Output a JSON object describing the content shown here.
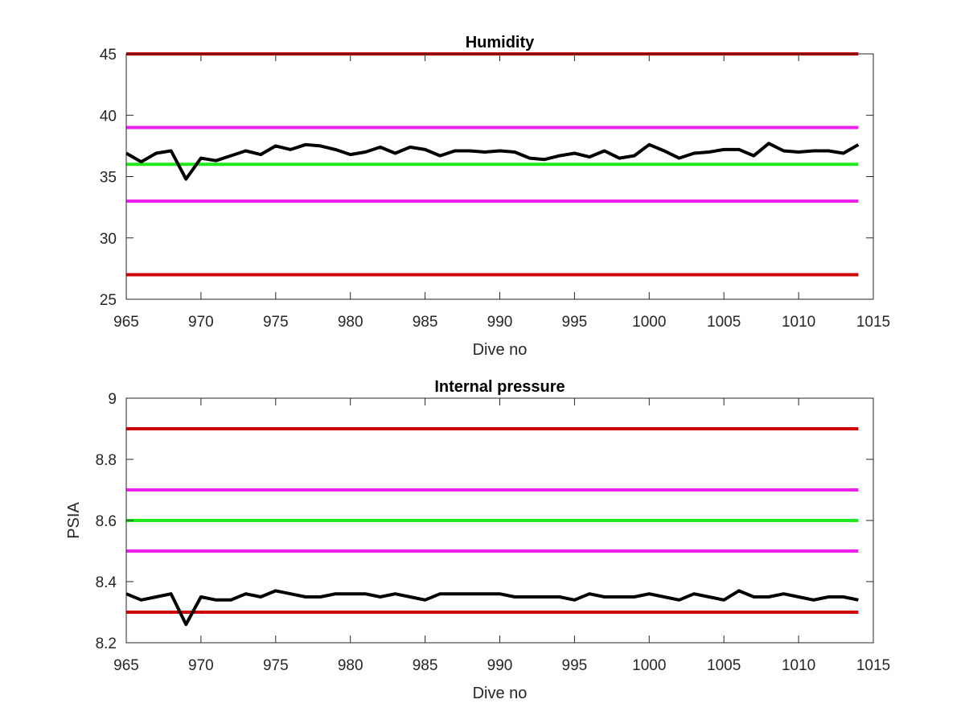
{
  "chart_data": [
    {
      "type": "line",
      "title": "Humidity",
      "xlabel": "Dive no",
      "ylabel": "",
      "xlim": [
        965,
        1015
      ],
      "ylim": [
        25,
        45
      ],
      "xticks": [
        "965",
        "970",
        "975",
        "980",
        "985",
        "990",
        "995",
        "1000",
        "1005",
        "1010",
        "1015"
      ],
      "yticks": [
        "25",
        "30",
        "35",
        "40",
        "45"
      ],
      "grid": false,
      "limit_lines": [
        {
          "y": 45,
          "color": "#d10000"
        },
        {
          "y": 39,
          "color": "#ee1fee"
        },
        {
          "y": 36,
          "color": "#1fe81f"
        },
        {
          "y": 33,
          "color": "#ee1fee"
        },
        {
          "y": 27,
          "color": "#d10000"
        }
      ],
      "series": [
        {
          "color": "#000000",
          "x": [
            965,
            966,
            967,
            968,
            969,
            970,
            971,
            972,
            973,
            974,
            975,
            976,
            977,
            978,
            979,
            980,
            981,
            982,
            983,
            984,
            985,
            986,
            987,
            988,
            989,
            990,
            991,
            992,
            993,
            994,
            995,
            996,
            997,
            998,
            999,
            1000,
            1001,
            1002,
            1003,
            1004,
            1005,
            1006,
            1007,
            1008,
            1009,
            1010,
            1011,
            1012,
            1013,
            1014
          ],
          "y": [
            36.9,
            36.2,
            36.9,
            37.1,
            34.8,
            36.5,
            36.3,
            36.7,
            37.1,
            36.8,
            37.5,
            37.2,
            37.6,
            37.5,
            37.2,
            36.8,
            37.0,
            37.4,
            36.9,
            37.4,
            37.2,
            36.7,
            37.1,
            37.1,
            37.0,
            37.1,
            37.0,
            36.5,
            36.4,
            36.7,
            36.9,
            36.6,
            37.1,
            36.5,
            36.7,
            37.6,
            37.1,
            36.5,
            36.9,
            37.0,
            37.2,
            37.2,
            36.7,
            37.7,
            37.1,
            37.0,
            37.1,
            37.1,
            36.9,
            37.6
          ]
        }
      ]
    },
    {
      "type": "line",
      "title": "Internal pressure",
      "xlabel": "Dive no",
      "ylabel": "PSIA",
      "xlim": [
        965,
        1015
      ],
      "ylim": [
        8.2,
        9
      ],
      "xticks": [
        "965",
        "970",
        "975",
        "980",
        "985",
        "990",
        "995",
        "1000",
        "1005",
        "1010",
        "1015"
      ],
      "yticks": [
        "8.2",
        "8.4",
        "8.6",
        "8.8",
        "9"
      ],
      "grid": false,
      "limit_lines": [
        {
          "y": 8.9,
          "color": "#d10000"
        },
        {
          "y": 8.7,
          "color": "#ee1fee"
        },
        {
          "y": 8.6,
          "color": "#1fe81f"
        },
        {
          "y": 8.5,
          "color": "#ee1fee"
        },
        {
          "y": 8.3,
          "color": "#d10000"
        }
      ],
      "series": [
        {
          "color": "#000000",
          "x": [
            965,
            966,
            967,
            968,
            969,
            970,
            971,
            972,
            973,
            974,
            975,
            976,
            977,
            978,
            979,
            980,
            981,
            982,
            983,
            984,
            985,
            986,
            987,
            988,
            989,
            990,
            991,
            992,
            993,
            994,
            995,
            996,
            997,
            998,
            999,
            1000,
            1001,
            1002,
            1003,
            1004,
            1005,
            1006,
            1007,
            1008,
            1009,
            1010,
            1011,
            1012,
            1013,
            1014
          ],
          "y": [
            8.36,
            8.34,
            8.35,
            8.36,
            8.26,
            8.35,
            8.34,
            8.34,
            8.36,
            8.35,
            8.37,
            8.36,
            8.35,
            8.35,
            8.36,
            8.36,
            8.36,
            8.35,
            8.36,
            8.35,
            8.34,
            8.36,
            8.36,
            8.36,
            8.36,
            8.36,
            8.35,
            8.35,
            8.35,
            8.35,
            8.34,
            8.36,
            8.35,
            8.35,
            8.35,
            8.36,
            8.35,
            8.34,
            8.36,
            8.35,
            8.34,
            8.37,
            8.35,
            8.35,
            8.36,
            8.35,
            8.34,
            8.35,
            8.35,
            8.34
          ]
        }
      ]
    }
  ]
}
